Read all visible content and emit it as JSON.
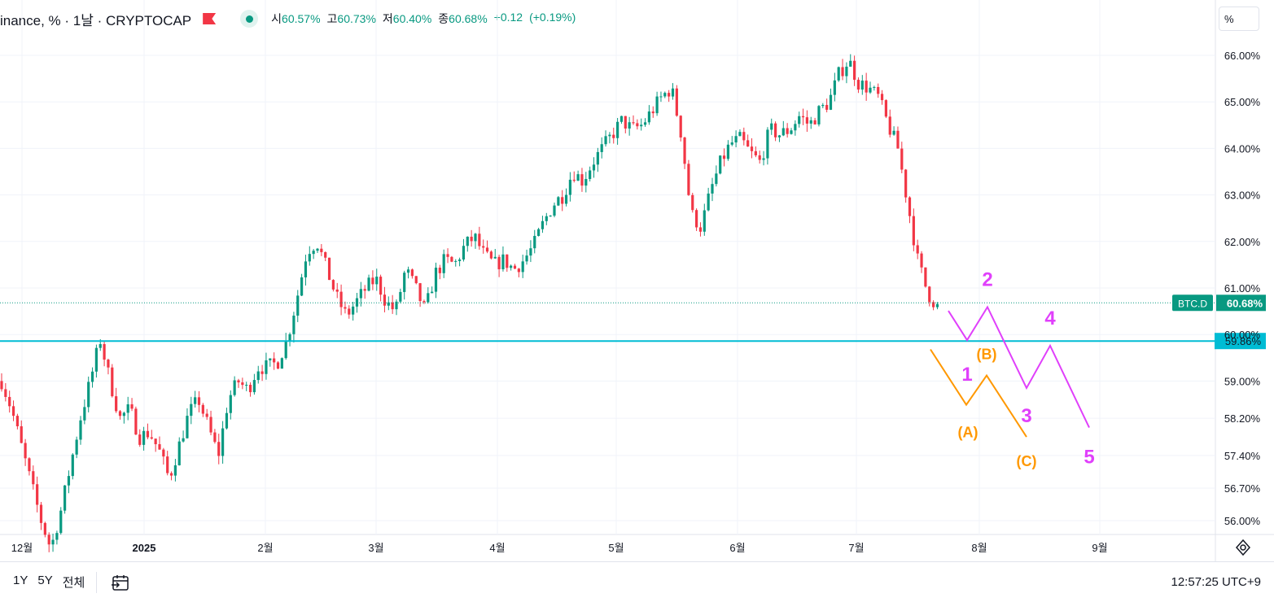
{
  "legend": {
    "symbol": "inance, % · 1날 · CRYPTOCAP",
    "ohlc": [
      {
        "k": "시",
        "v": "60.57%"
      },
      {
        "k": "고",
        "v": "60.73%"
      },
      {
        "k": "저",
        "v": "60.40%"
      },
      {
        "k": "종",
        "v": "60.68%"
      },
      {
        "k": "",
        "v": "+0.12"
      },
      {
        "k": "",
        "v": "(+0.19%)"
      }
    ],
    "flag_icon": "flag-icon",
    "status_icon": "market-open-dot-icon"
  },
  "scale_button": "%",
  "colors": {
    "up": "#089981",
    "down": "#f23645",
    "line": "#00bcd4",
    "pink": "#e040fb",
    "orange": "#ff9800",
    "badge": "#089981"
  },
  "chart_data": {
    "type": "candlestick",
    "ylim": [
      55.85,
      66.35
    ],
    "y_ticks": [
      "66.00%",
      "65.00%",
      "64.00%",
      "63.00%",
      "62.00%",
      "61.00%",
      "60.00%",
      "59.00%",
      "58.20%",
      "57.40%",
      "56.70%",
      "56.00%"
    ],
    "y_tick_values": [
      66.0,
      65.0,
      64.0,
      63.0,
      62.0,
      61.0,
      60.0,
      59.0,
      58.2,
      57.4,
      56.7,
      56.0
    ],
    "x_ticks": [
      "12월",
      "2025",
      "2월",
      "3월",
      "4월",
      "5월",
      "6월",
      "7월",
      "8월",
      "9월"
    ],
    "price_path": [
      59.0,
      58.4,
      57.6,
      56.8,
      56.0,
      55.4,
      56.2,
      57.2,
      58.2,
      59.0,
      59.9,
      59.0,
      58.2,
      58.4,
      57.8,
      57.9,
      57.5,
      56.9,
      57.6,
      58.3,
      58.6,
      58.0,
      57.4,
      58.6,
      59.0,
      58.8,
      59.3,
      59.3,
      59.4,
      59.9,
      60.8,
      61.8,
      62.0,
      61.4,
      60.8,
      60.4,
      60.7,
      61.0,
      61.2,
      60.7,
      60.5,
      61.4,
      61.0,
      60.5,
      61.3,
      61.6,
      61.5,
      61.9,
      62.1,
      61.7,
      61.5,
      61.6,
      61.4,
      61.6,
      61.9,
      62.4,
      62.8,
      63.0,
      63.5,
      63.3,
      63.7,
      64.0,
      64.3,
      64.6,
      64.4,
      64.5,
      64.8,
      65.1,
      65.3,
      64.3,
      62.6,
      62.3,
      63.1,
      63.7,
      64.1,
      64.2,
      63.9,
      63.7,
      64.4,
      64.3,
      64.4,
      64.7,
      64.5,
      64.8,
      65.0,
      65.6,
      65.9,
      65.4,
      65.3,
      65.1,
      64.5,
      64.0,
      62.8,
      61.6,
      60.9,
      60.6
    ],
    "last_value": 60.68,
    "last_label": "60.68%",
    "last_badge_name": "BTC.D",
    "hline_value": 59.86,
    "hline_label": "59.86%",
    "wave_pink": [
      {
        "label": "",
        "x": 1165,
        "y": 60.51
      },
      {
        "label": "1",
        "x": 1188,
        "y": 59.88
      },
      {
        "label": "2",
        "x": 1213,
        "y": 60.59
      },
      {
        "label": "3",
        "x": 1261,
        "y": 58.85
      },
      {
        "label": "4",
        "x": 1290,
        "y": 59.76
      },
      {
        "label": "5",
        "x": 1338,
        "y": 58.0
      }
    ],
    "wave_orange": [
      {
        "label": "",
        "x": 1143,
        "y": 59.68
      },
      {
        "label": "(A)",
        "x": 1187,
        "y": 58.49
      },
      {
        "label": "(B)",
        "x": 1212,
        "y": 59.12
      },
      {
        "label": "(C)",
        "x": 1261,
        "y": 57.8
      }
    ]
  },
  "bottom": {
    "ranges": [
      "1Y",
      "5Y",
      "전체"
    ],
    "calendar_icon": "calendar-jump-icon",
    "clock": "12:57:25 UTC+9",
    "settings_icon": "axis-settings-icon"
  }
}
